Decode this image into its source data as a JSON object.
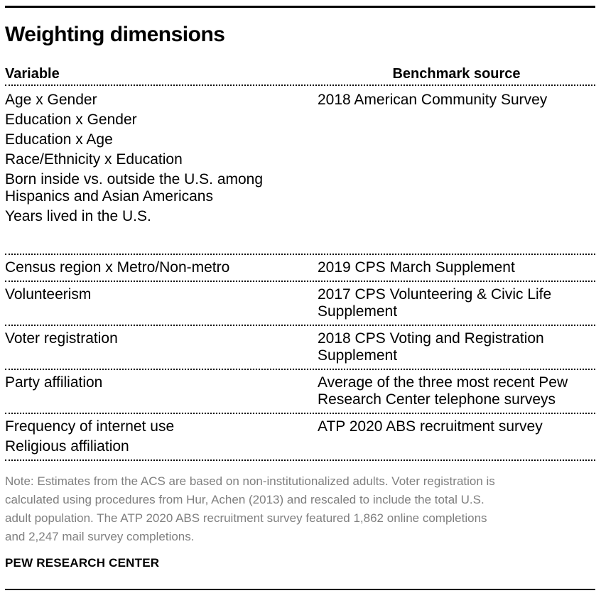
{
  "colors": {
    "text": "#000000",
    "note_text": "#7f7f7f",
    "rule": "#000000",
    "background": "#ffffff"
  },
  "chart_data": {
    "type": "table",
    "title": "Weighting dimensions",
    "columns": {
      "variable": "Variable",
      "benchmark": "Benchmark source"
    },
    "rows": [
      {
        "variables": [
          "Age x Gender",
          "Education x Gender",
          "Education x Age",
          "Race/Ethnicity x Education",
          "Born inside vs. outside the U.S. among\nHispanics and Asian Americans",
          "Years lived in the U.S."
        ],
        "benchmark": "2018 American Community Survey"
      },
      {
        "variables": [
          "Census region x Metro/Non-metro"
        ],
        "benchmark": "2019 CPS March Supplement"
      },
      {
        "variables": [
          "Volunteerism"
        ],
        "benchmark": "2017 CPS Volunteering & Civic Life\nSupplement"
      },
      {
        "variables": [
          "Voter registration"
        ],
        "benchmark": "2018 CPS Voting and Registration\nSupplement"
      },
      {
        "variables": [
          "Party affiliation"
        ],
        "benchmark": "Average of the three most recent Pew\nResearch Center telephone surveys"
      },
      {
        "variables": [
          "Frequency of internet use",
          "Religious affiliation"
        ],
        "benchmark": "ATP 2020 ABS recruitment survey"
      }
    ],
    "note": "Note: Estimates from the ACS are based on non-institutionalized adults. Voter registration is\ncalculated using procedures from Hur, Achen (2013) and rescaled to include the total U.S.\nadult population. The ATP 2020 ABS recruitment survey featured 1,862 online completions\nand 2,247 mail survey completions.",
    "source": "PEW RESEARCH CENTER"
  }
}
